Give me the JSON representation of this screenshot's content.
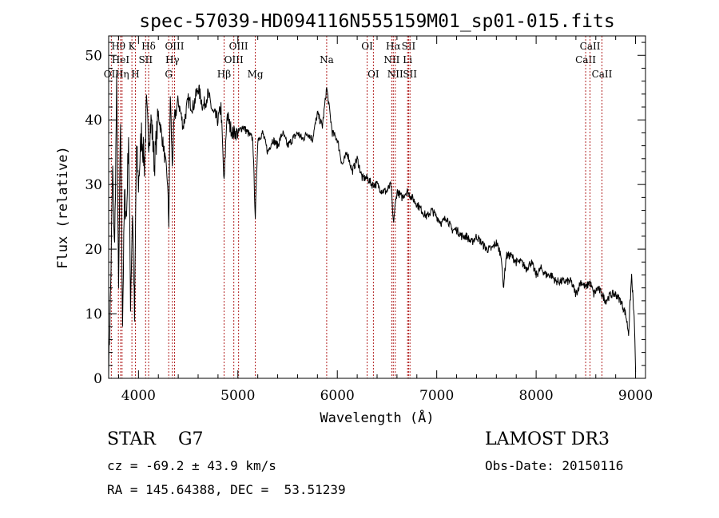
{
  "chart_data": {
    "type": "line",
    "title": "spec-57039-HD094116N555159M01_sp01-015.fits",
    "xlabel": "Wavelength (Å)",
    "ylabel": "Flux (relative)",
    "xlim": [
      3700,
      9100
    ],
    "ylim": [
      0,
      53
    ],
    "xticks": [
      4000,
      5000,
      6000,
      7000,
      8000,
      9000
    ],
    "xtick_labels": [
      "4000",
      "5000",
      "6000",
      "7000",
      "8000",
      "9000"
    ],
    "yticks": [
      0,
      10,
      20,
      30,
      40,
      50
    ],
    "ytick_labels": [
      "0",
      "10",
      "20",
      "30",
      "40",
      "50"
    ],
    "series": [
      {
        "name": "flux",
        "x": [
          3700,
          3720,
          3740,
          3760,
          3780,
          3800,
          3820,
          3840,
          3860,
          3880,
          3900,
          3920,
          3940,
          3960,
          3980,
          4000,
          4030,
          4060,
          4080,
          4100,
          4130,
          4160,
          4200,
          4250,
          4290,
          4305,
          4320,
          4340,
          4360,
          4400,
          4450,
          4500,
          4550,
          4600,
          4650,
          4700,
          4750,
          4800,
          4830,
          4861,
          4890,
          4920,
          4950,
          5000,
          5050,
          5100,
          5150,
          5175,
          5200,
          5250,
          5300,
          5350,
          5400,
          5450,
          5500,
          5550,
          5600,
          5650,
          5700,
          5750,
          5800,
          5850,
          5893,
          5950,
          6000,
          6050,
          6100,
          6150,
          6200,
          6250,
          6300,
          6350,
          6400,
          6450,
          6500,
          6540,
          6563,
          6600,
          6650,
          6700,
          6750,
          6800,
          6850,
          6900,
          6950,
          7000,
          7050,
          7100,
          7150,
          7200,
          7250,
          7300,
          7350,
          7400,
          7450,
          7500,
          7550,
          7600,
          7650,
          7670,
          7700,
          7750,
          7800,
          7850,
          7900,
          7950,
          8000,
          8050,
          8100,
          8150,
          8200,
          8250,
          8300,
          8350,
          8400,
          8450,
          8500,
          8540,
          8580,
          8620,
          8662,
          8700,
          8750,
          8800,
          8850,
          8900,
          8930,
          8960,
          8990,
          9000
        ],
        "values": [
          1,
          14,
          32,
          20,
          45,
          13,
          40,
          9,
          28,
          25,
          38,
          12,
          26,
          9,
          36,
          30,
          38,
          33,
          42,
          37,
          40,
          33,
          41,
          36,
          31,
          24,
          44,
          33,
          40,
          43,
          39,
          43,
          42,
          45,
          42,
          44,
          41,
          40,
          42,
          30,
          41,
          39,
          38,
          38,
          39,
          38,
          37,
          25,
          37,
          38,
          35,
          37,
          36,
          38,
          36,
          37,
          38,
          37,
          38,
          37,
          41,
          39,
          45,
          38,
          37,
          33,
          35,
          32,
          34,
          31,
          31,
          30,
          30,
          29,
          29,
          30,
          24,
          29,
          28,
          29,
          28,
          27,
          26,
          25,
          26,
          25,
          24,
          25,
          23,
          23,
          22,
          22,
          21,
          22,
          21,
          20,
          20,
          21,
          19,
          14,
          19,
          19,
          18,
          18,
          17,
          18,
          16,
          17,
          16,
          16,
          15,
          15,
          15,
          15,
          13,
          15,
          14,
          15,
          13,
          14,
          13,
          12,
          13,
          13,
          12,
          10,
          7,
          16,
          8,
          1
        ]
      }
    ],
    "line_markers": [
      {
        "label": "OII",
        "wavelength": 3727,
        "row": 2
      },
      {
        "label": "Hθ",
        "wavelength": 3798,
        "row": 0
      },
      {
        "label": "HeI",
        "wavelength": 3820,
        "row": 1
      },
      {
        "label": "Hη",
        "wavelength": 3835,
        "row": 2
      },
      {
        "label": "K",
        "wavelength": 3934,
        "row": 0
      },
      {
        "label": "H",
        "wavelength": 3969,
        "row": 2
      },
      {
        "label": "SII",
        "wavelength": 4072,
        "row": 1
      },
      {
        "label": "Hδ",
        "wavelength": 4102,
        "row": 0
      },
      {
        "label": "G",
        "wavelength": 4304,
        "row": 2
      },
      {
        "label": "Hγ",
        "wavelength": 4341,
        "row": 1
      },
      {
        "label": "OIII",
        "wavelength": 4363,
        "row": 0
      },
      {
        "label": "Hβ",
        "wavelength": 4861,
        "row": 2
      },
      {
        "label": "OIII",
        "wavelength": 4959,
        "row": 1
      },
      {
        "label": "OIII",
        "wavelength": 5007,
        "row": 0
      },
      {
        "label": "Mg",
        "wavelength": 5175,
        "row": 2
      },
      {
        "label": "Na",
        "wavelength": 5893,
        "row": 1
      },
      {
        "label": "OI",
        "wavelength": 6300,
        "row": 0
      },
      {
        "label": "OI",
        "wavelength": 6363,
        "row": 2
      },
      {
        "label": "NII",
        "wavelength": 6548,
        "row": 1
      },
      {
        "label": "Hα",
        "wavelength": 6563,
        "row": 0
      },
      {
        "label": "NII",
        "wavelength": 6583,
        "row": 2
      },
      {
        "label": "Li",
        "wavelength": 6707,
        "row": 1
      },
      {
        "label": "SII",
        "wavelength": 6717,
        "row": 0
      },
      {
        "label": "SII",
        "wavelength": 6731,
        "row": 2
      },
      {
        "label": "CaII",
        "wavelength": 8498,
        "row": 1
      },
      {
        "label": "CaII",
        "wavelength": 8542,
        "row": 0
      },
      {
        "label": "CaII",
        "wavelength": 8662,
        "row": 2
      }
    ]
  },
  "info": {
    "class_line": "STAR    G7",
    "survey": "LAMOST DR3",
    "cz": "cz = -69.2 ± 43.9 km/s",
    "obs_date": "Obs-Date: 20150116",
    "coords": "RA = 145.64388, DEC =  53.51239"
  },
  "colors": {
    "line": "#000000",
    "marker": "#b22222"
  }
}
